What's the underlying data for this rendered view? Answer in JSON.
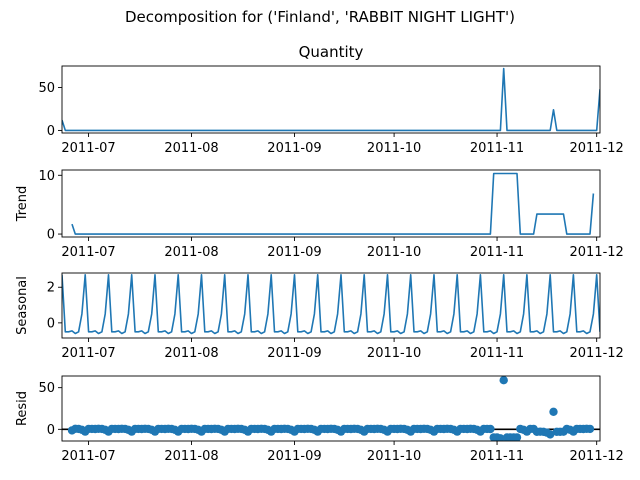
{
  "figure": {
    "suptitle": "Decomposition for ('Finland', 'RABBIT NIGHT LIGHT')"
  },
  "colors": {
    "series": "#1f77b4",
    "zero_line": "#000000"
  },
  "chart_data": [
    {
      "type": "line",
      "title": "Quantity",
      "ylabel": "",
      "x_range": [
        "2011-06-23",
        "2011-12-02"
      ],
      "ylim": [
        -3,
        75
      ],
      "yticks": [
        0,
        50
      ],
      "xticks": [
        "2011-07",
        "2011-08",
        "2011-09",
        "2011-10",
        "2011-11",
        "2011-12"
      ],
      "series": [
        {
          "x": [
            "2011-06-23",
            "2011-06-24",
            "2011-11-02",
            "2011-11-03",
            "2011-11-04",
            "2011-11-17",
            "2011-11-18",
            "2011-11-19",
            "2011-12-01",
            "2011-12-02"
          ],
          "y": [
            12,
            0,
            0,
            72,
            0,
            0,
            24,
            0,
            0,
            48
          ]
        }
      ]
    },
    {
      "type": "line",
      "title": "",
      "ylabel": "Trend",
      "x_range": [
        "2011-06-23",
        "2011-12-02"
      ],
      "ylim": [
        -0.5,
        10.9
      ],
      "yticks": [
        0,
        10
      ],
      "xticks": [
        "2011-07",
        "2011-08",
        "2011-09",
        "2011-10",
        "2011-11",
        "2011-12"
      ],
      "series": [
        {
          "x": [
            "2011-06-26",
            "2011-06-27",
            "2011-10-30",
            "2011-10-31",
            "2011-11-07",
            "2011-11-08",
            "2011-11-12",
            "2011-11-13",
            "2011-11-21",
            "2011-11-22",
            "2011-11-29",
            "2011-11-30"
          ],
          "y": [
            1.7,
            0,
            0,
            10.3,
            10.3,
            0,
            0,
            3.4,
            3.4,
            0,
            0,
            6.9
          ]
        }
      ]
    },
    {
      "type": "line",
      "title": "",
      "ylabel": "Seasonal",
      "x_range": [
        "2011-06-23",
        "2011-12-02"
      ],
      "ylim": [
        -0.85,
        2.8
      ],
      "yticks": [
        0,
        2
      ],
      "xticks": [
        "2011-07",
        "2011-08",
        "2011-09",
        "2011-10",
        "2011-11",
        "2011-12"
      ],
      "period_days": 7,
      "pattern_start": "2011-06-23",
      "pattern": [
        2.7,
        -0.5,
        -0.5,
        -0.45,
        -0.6,
        -0.5,
        0.5
      ]
    },
    {
      "type": "scatter",
      "title": "",
      "ylabel": "Resid",
      "x_range": [
        "2011-06-23",
        "2011-12-02"
      ],
      "ylim": [
        -14,
        64
      ],
      "yticks": [
        0,
        50
      ],
      "xticks": [
        "2011-07",
        "2011-08",
        "2011-09",
        "2011-10",
        "2011-11",
        "2011-12"
      ],
      "zero_line": true,
      "residual_rule": "quantity - trend - seasonal",
      "points_range": [
        "2011-06-26",
        "2011-11-29"
      ]
    }
  ]
}
